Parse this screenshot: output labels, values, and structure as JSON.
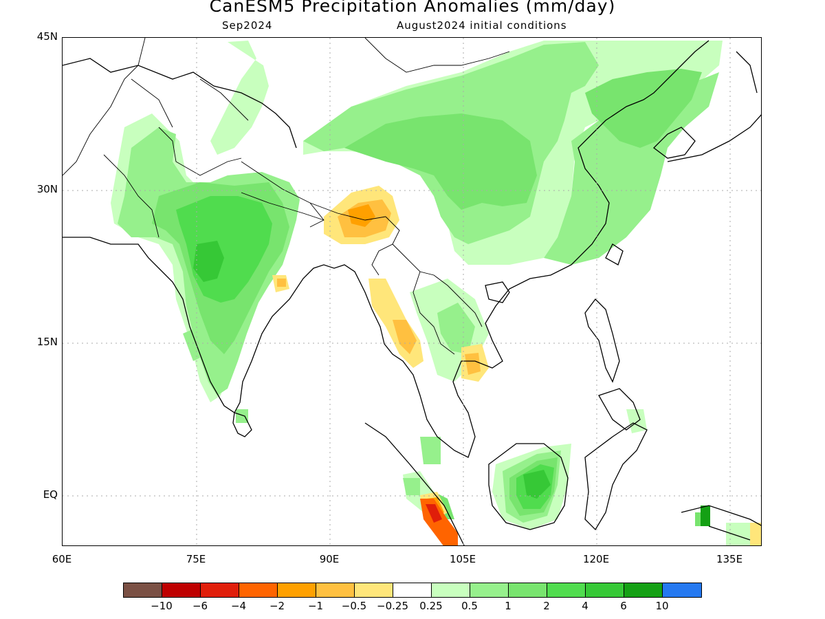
{
  "title": "CanESM5 Precipitation Anomalies (mm/day)",
  "subtitle_left": "Sep2024",
  "subtitle_right": "August2024 initial conditions",
  "lat_labels": [
    "45N",
    "30N",
    "15N",
    "EQ"
  ],
  "lon_labels": [
    "60E",
    "75E",
    "90E",
    "105E",
    "120E",
    "135E"
  ],
  "legend": {
    "colors": [
      "#7a5044",
      "#be0000",
      "#e01e0a",
      "#ff6400",
      "#ffa000",
      "#ffc040",
      "#ffe67a",
      "#ffffff",
      "#c8ffbe",
      "#96f08c",
      "#78e46e",
      "#50dc4e",
      "#36c836",
      "#14a014",
      "#2478f0"
    ],
    "ticks": [
      "−10",
      "−6",
      "−4",
      "−2",
      "−1",
      "−0.5",
      "−0.25",
      "0.25",
      "0.5",
      "1",
      "2",
      "4",
      "6",
      "10"
    ]
  }
}
